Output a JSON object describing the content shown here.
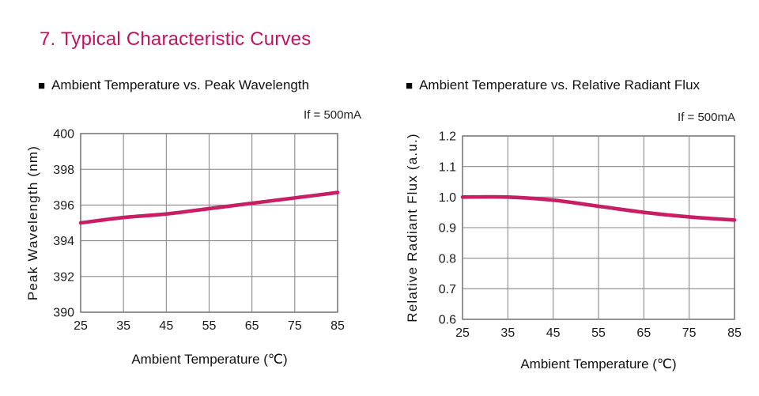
{
  "page": {
    "title": "7. Typical Characteristic Curves",
    "bullet": "■"
  },
  "colors": {
    "title": "#C1125F",
    "curve": "#C81E64",
    "grid": "#8A8A8A",
    "border": "#7A7A7A",
    "text": "#1A1A1A"
  },
  "chart_data": [
    {
      "type": "line",
      "title": "Ambient Temperature vs. Peak Wavelength",
      "annotation": "If = 500mA",
      "xlabel": "Ambient Temperature (℃)",
      "ylabel": "Peak Wavelength (nm)",
      "x": [
        25,
        35,
        45,
        55,
        65,
        75,
        85
      ],
      "values": [
        395.0,
        395.3,
        395.5,
        395.8,
        396.1,
        396.4,
        396.7
      ],
      "xlim": [
        25,
        85
      ],
      "ylim": [
        390,
        400
      ],
      "xticks": [
        25,
        35,
        45,
        55,
        65,
        75,
        85
      ],
      "xtick_labels": [
        "25",
        "35",
        "45",
        "55",
        "65",
        "75",
        "85"
      ],
      "yticks": [
        390,
        392,
        394,
        396,
        398,
        400
      ],
      "ytick_labels": [
        "390",
        "392",
        "394",
        "396",
        "398",
        "400"
      ],
      "grid": true,
      "legend": "none",
      "line_color": "#C81E64"
    },
    {
      "type": "line",
      "title": "Ambient Temperature vs. Relative Radiant Flux",
      "annotation": "If = 500mA",
      "xlabel": "Ambient Temperature (℃)",
      "ylabel": "Relative Radiant Flux (a.u.)",
      "x": [
        25,
        35,
        45,
        55,
        65,
        75,
        85
      ],
      "values": [
        1.0,
        1.0,
        0.99,
        0.97,
        0.95,
        0.935,
        0.925
      ],
      "xlim": [
        25,
        85
      ],
      "ylim": [
        0.6,
        1.2
      ],
      "xticks": [
        25,
        35,
        45,
        55,
        65,
        75,
        85
      ],
      "xtick_labels": [
        "25",
        "35",
        "45",
        "55",
        "65",
        "75",
        "85"
      ],
      "yticks": [
        0.6,
        0.7,
        0.8,
        0.9,
        1.0,
        1.1,
        1.2
      ],
      "ytick_labels": [
        "0.6",
        "0.7",
        "0.8",
        "0.9",
        "1.0",
        "1.1",
        "1.2"
      ],
      "grid": true,
      "legend": "none",
      "line_color": "#C81E64"
    }
  ]
}
